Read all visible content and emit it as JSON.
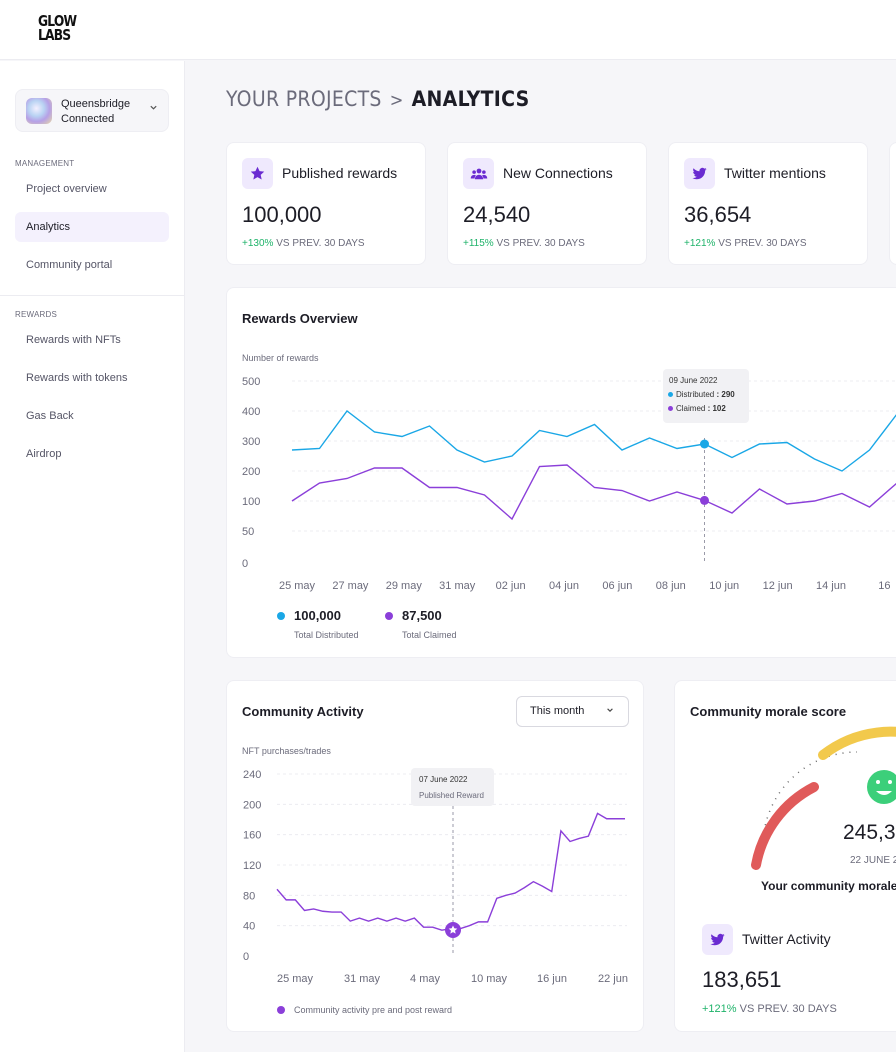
{
  "brand": {
    "line1": "GLOW",
    "line2": "LABS"
  },
  "account": {
    "name": "Queensbridge",
    "status": "Connected"
  },
  "sidebar": {
    "management_label": "MANAGEMENT",
    "rewards_label": "REWARDS",
    "items": [
      {
        "label": "Project overview"
      },
      {
        "label": "Analytics"
      },
      {
        "label": "Community portal"
      },
      {
        "label": "Rewards with NFTs"
      },
      {
        "label": "Rewards with tokens"
      },
      {
        "label": "Gas Back"
      },
      {
        "label": "Airdrop"
      }
    ]
  },
  "breadcrumb": {
    "parent": "YOUR PROJECTS",
    "separator": ">",
    "current": "ANALYTICS"
  },
  "stats": [
    {
      "label": "Published rewards",
      "value": "100,000",
      "change": "+130%",
      "period": "VS PREV. 30 DAYS",
      "icon": "star-icon"
    },
    {
      "label": "New Connections",
      "value": "24,540",
      "change": "+115%",
      "period": "VS PREV. 30 DAYS",
      "icon": "users-icon"
    },
    {
      "label": "Twitter mentions",
      "value": "36,654",
      "change": "+121%",
      "period": "VS PREV. 30 DAYS",
      "icon": "twitter-icon"
    }
  ],
  "colors": {
    "accent": "#7c3aed",
    "distributed": "#1aa7e6",
    "claimed": "#8b3fd9",
    "positive": "#1fb36a",
    "gauge_red": "#e05a5a",
    "gauge_yellow": "#f2c94c",
    "gauge_green": "#3ccf7a"
  },
  "rewards_overview": {
    "title": "Rewards Overview",
    "ylabel": "Number of rewards",
    "tooltip": {
      "date": "09 June 2022",
      "distributed_label": "Distributed",
      "distributed_value": ": 290",
      "claimed_label": "Claimed",
      "claimed_value": ": 102"
    },
    "legend": [
      {
        "value": "100,000",
        "label": "Total Distributed"
      },
      {
        "value": "87,500",
        "label": "Total Claimed"
      }
    ]
  },
  "community_activity": {
    "title": "Community Activity",
    "ylabel": "NFT purchases/trades",
    "dropdown": "This month",
    "tooltip": {
      "date": "07 June 2022",
      "text": "Published Reward"
    },
    "legend": "Community activity pre and post reward"
  },
  "morale": {
    "title": "Community morale score",
    "value": "245,3",
    "date": "22 JUNE 2",
    "caption": "Your community morale",
    "twitter": {
      "label": "Twitter Activity",
      "value": "183,651",
      "change": "+121%",
      "period": "VS PREV. 30 DAYS"
    }
  },
  "chart_data": [
    {
      "type": "line",
      "title": "Rewards Overview",
      "ylabel": "Number of rewards",
      "ylim": [
        0,
        500
      ],
      "yticks": [
        0,
        50,
        100,
        200,
        300,
        400,
        500
      ],
      "xticks": [
        "25 may",
        "27 may",
        "29 may",
        "31 may",
        "02 jun",
        "04 jun",
        "06 jun",
        "08 jun",
        "10 jun",
        "12 jun",
        "14 jun",
        "16"
      ],
      "series": [
        {
          "name": "Distributed",
          "values": [
            270,
            275,
            400,
            330,
            315,
            350,
            270,
            230,
            250,
            335,
            315,
            355,
            270,
            310,
            275,
            290,
            245,
            290,
            295,
            240,
            200,
            270,
            390
          ]
        },
        {
          "name": "Claimed",
          "values": [
            100,
            160,
            175,
            210,
            210,
            145,
            145,
            120,
            70,
            215,
            220,
            145,
            135,
            100,
            130,
            102,
            80,
            140,
            95,
            100,
            125,
            90,
            160
          ]
        }
      ]
    },
    {
      "type": "line",
      "title": "Community Activity",
      "ylabel": "NFT purchases/trades",
      "ylim": [
        0,
        240
      ],
      "yticks": [
        0,
        40,
        80,
        120,
        160,
        200,
        240
      ],
      "xticks": [
        "25 may",
        "31 may",
        "4 may",
        "10 may",
        "16 jun",
        "22 jun"
      ],
      "series": [
        {
          "name": "Community activity pre and post reward",
          "values": [
            88,
            74,
            74,
            60,
            62,
            59,
            58,
            58,
            46,
            50,
            46,
            50,
            46,
            50,
            46,
            50,
            38,
            38,
            34,
            36,
            36,
            40,
            45,
            45,
            76,
            80,
            83,
            90,
            98,
            92,
            85,
            165,
            151,
            155,
            158,
            188,
            181,
            181,
            181
          ]
        }
      ]
    }
  ]
}
